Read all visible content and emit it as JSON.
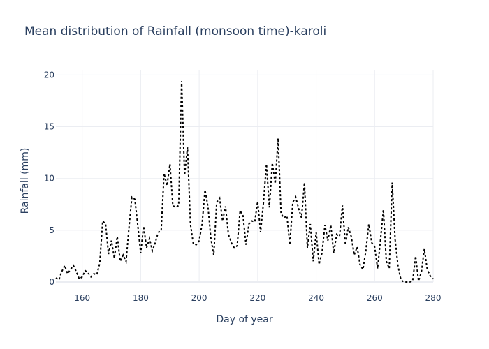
{
  "chart_data": {
    "type": "line",
    "title": "Mean distribution of Rainfall (monsoon time)-karoli",
    "xlabel": "Day of year",
    "ylabel": "Rainfall (mm)",
    "xlim": [
      151,
      280
    ],
    "ylim": [
      0,
      20
    ],
    "xticks": [
      160,
      180,
      200,
      220,
      240,
      260,
      280
    ],
    "yticks": [
      0,
      5,
      10,
      15,
      20
    ],
    "grid": true,
    "line_color": "#000000",
    "line_style": "dotted",
    "series": [
      {
        "x": [
          151,
          152,
          153,
          154,
          155,
          156,
          157,
          158,
          159,
          160,
          161,
          162,
          163,
          164,
          165,
          166,
          167,
          168,
          169,
          170,
          171,
          172,
          173,
          174,
          175,
          176,
          177,
          178,
          179,
          180,
          181,
          182,
          183,
          184,
          185,
          186,
          187,
          188,
          189,
          190,
          191,
          192,
          193,
          194,
          195,
          196,
          197,
          198,
          199,
          200,
          201,
          202,
          203,
          204,
          205,
          206,
          207,
          208,
          209,
          210,
          211,
          212,
          213,
          214,
          215,
          216,
          217,
          218,
          219,
          220,
          221,
          222,
          223,
          224,
          225,
          226,
          227,
          228,
          229,
          230,
          231,
          232,
          233,
          234,
          235,
          236,
          237,
          238,
          239,
          240,
          241,
          242,
          243,
          244,
          245,
          246,
          247,
          248,
          249,
          250,
          251,
          252,
          253,
          254,
          255,
          256,
          257,
          258,
          259,
          260,
          261,
          262,
          263,
          264,
          265,
          266,
          267,
          268,
          269,
          270,
          271,
          272,
          273,
          274,
          275,
          276,
          277,
          278,
          279,
          280
        ],
        "values": [
          0.4,
          0.2,
          1.0,
          1.6,
          0.8,
          1.2,
          1.6,
          1.0,
          0.3,
          0.5,
          1.1,
          0.9,
          0.5,
          0.8,
          0.7,
          1.8,
          5.9,
          5.6,
          2.7,
          4.0,
          2.3,
          4.4,
          2.0,
          2.6,
          2.0,
          5.3,
          8.2,
          8.0,
          5.5,
          2.8,
          5.4,
          3.3,
          4.2,
          3.0,
          3.8,
          4.8,
          4.9,
          10.5,
          9.3,
          11.4,
          7.4,
          7.2,
          7.4,
          19.4,
          10.3,
          13.0,
          5.6,
          3.7,
          3.6,
          4.0,
          5.6,
          8.9,
          7.3,
          4.2,
          2.6,
          7.7,
          8.1,
          5.9,
          7.3,
          4.6,
          3.8,
          3.3,
          3.5,
          6.9,
          6.4,
          3.6,
          5.6,
          5.9,
          5.8,
          7.8,
          4.8,
          7.7,
          11.4,
          7.2,
          11.5,
          9.5,
          13.9,
          6.6,
          6.2,
          6.4,
          3.6,
          7.7,
          8.2,
          7.1,
          6.2,
          9.6,
          3.3,
          5.6,
          2.0,
          4.8,
          1.7,
          2.8,
          5.5,
          4.0,
          5.5,
          2.8,
          4.6,
          4.4,
          7.4,
          3.6,
          5.3,
          4.4,
          2.6,
          3.4,
          1.7,
          1.2,
          3.0,
          5.6,
          3.8,
          3.4,
          1.3,
          4.1,
          7.0,
          2.0,
          1.3,
          9.6,
          4.1,
          1.5,
          0.2,
          0.0,
          0.0,
          0.0,
          0.1,
          2.5,
          0.1,
          1.0,
          3.2,
          1.2,
          0.6,
          0.3
        ]
      }
    ]
  }
}
